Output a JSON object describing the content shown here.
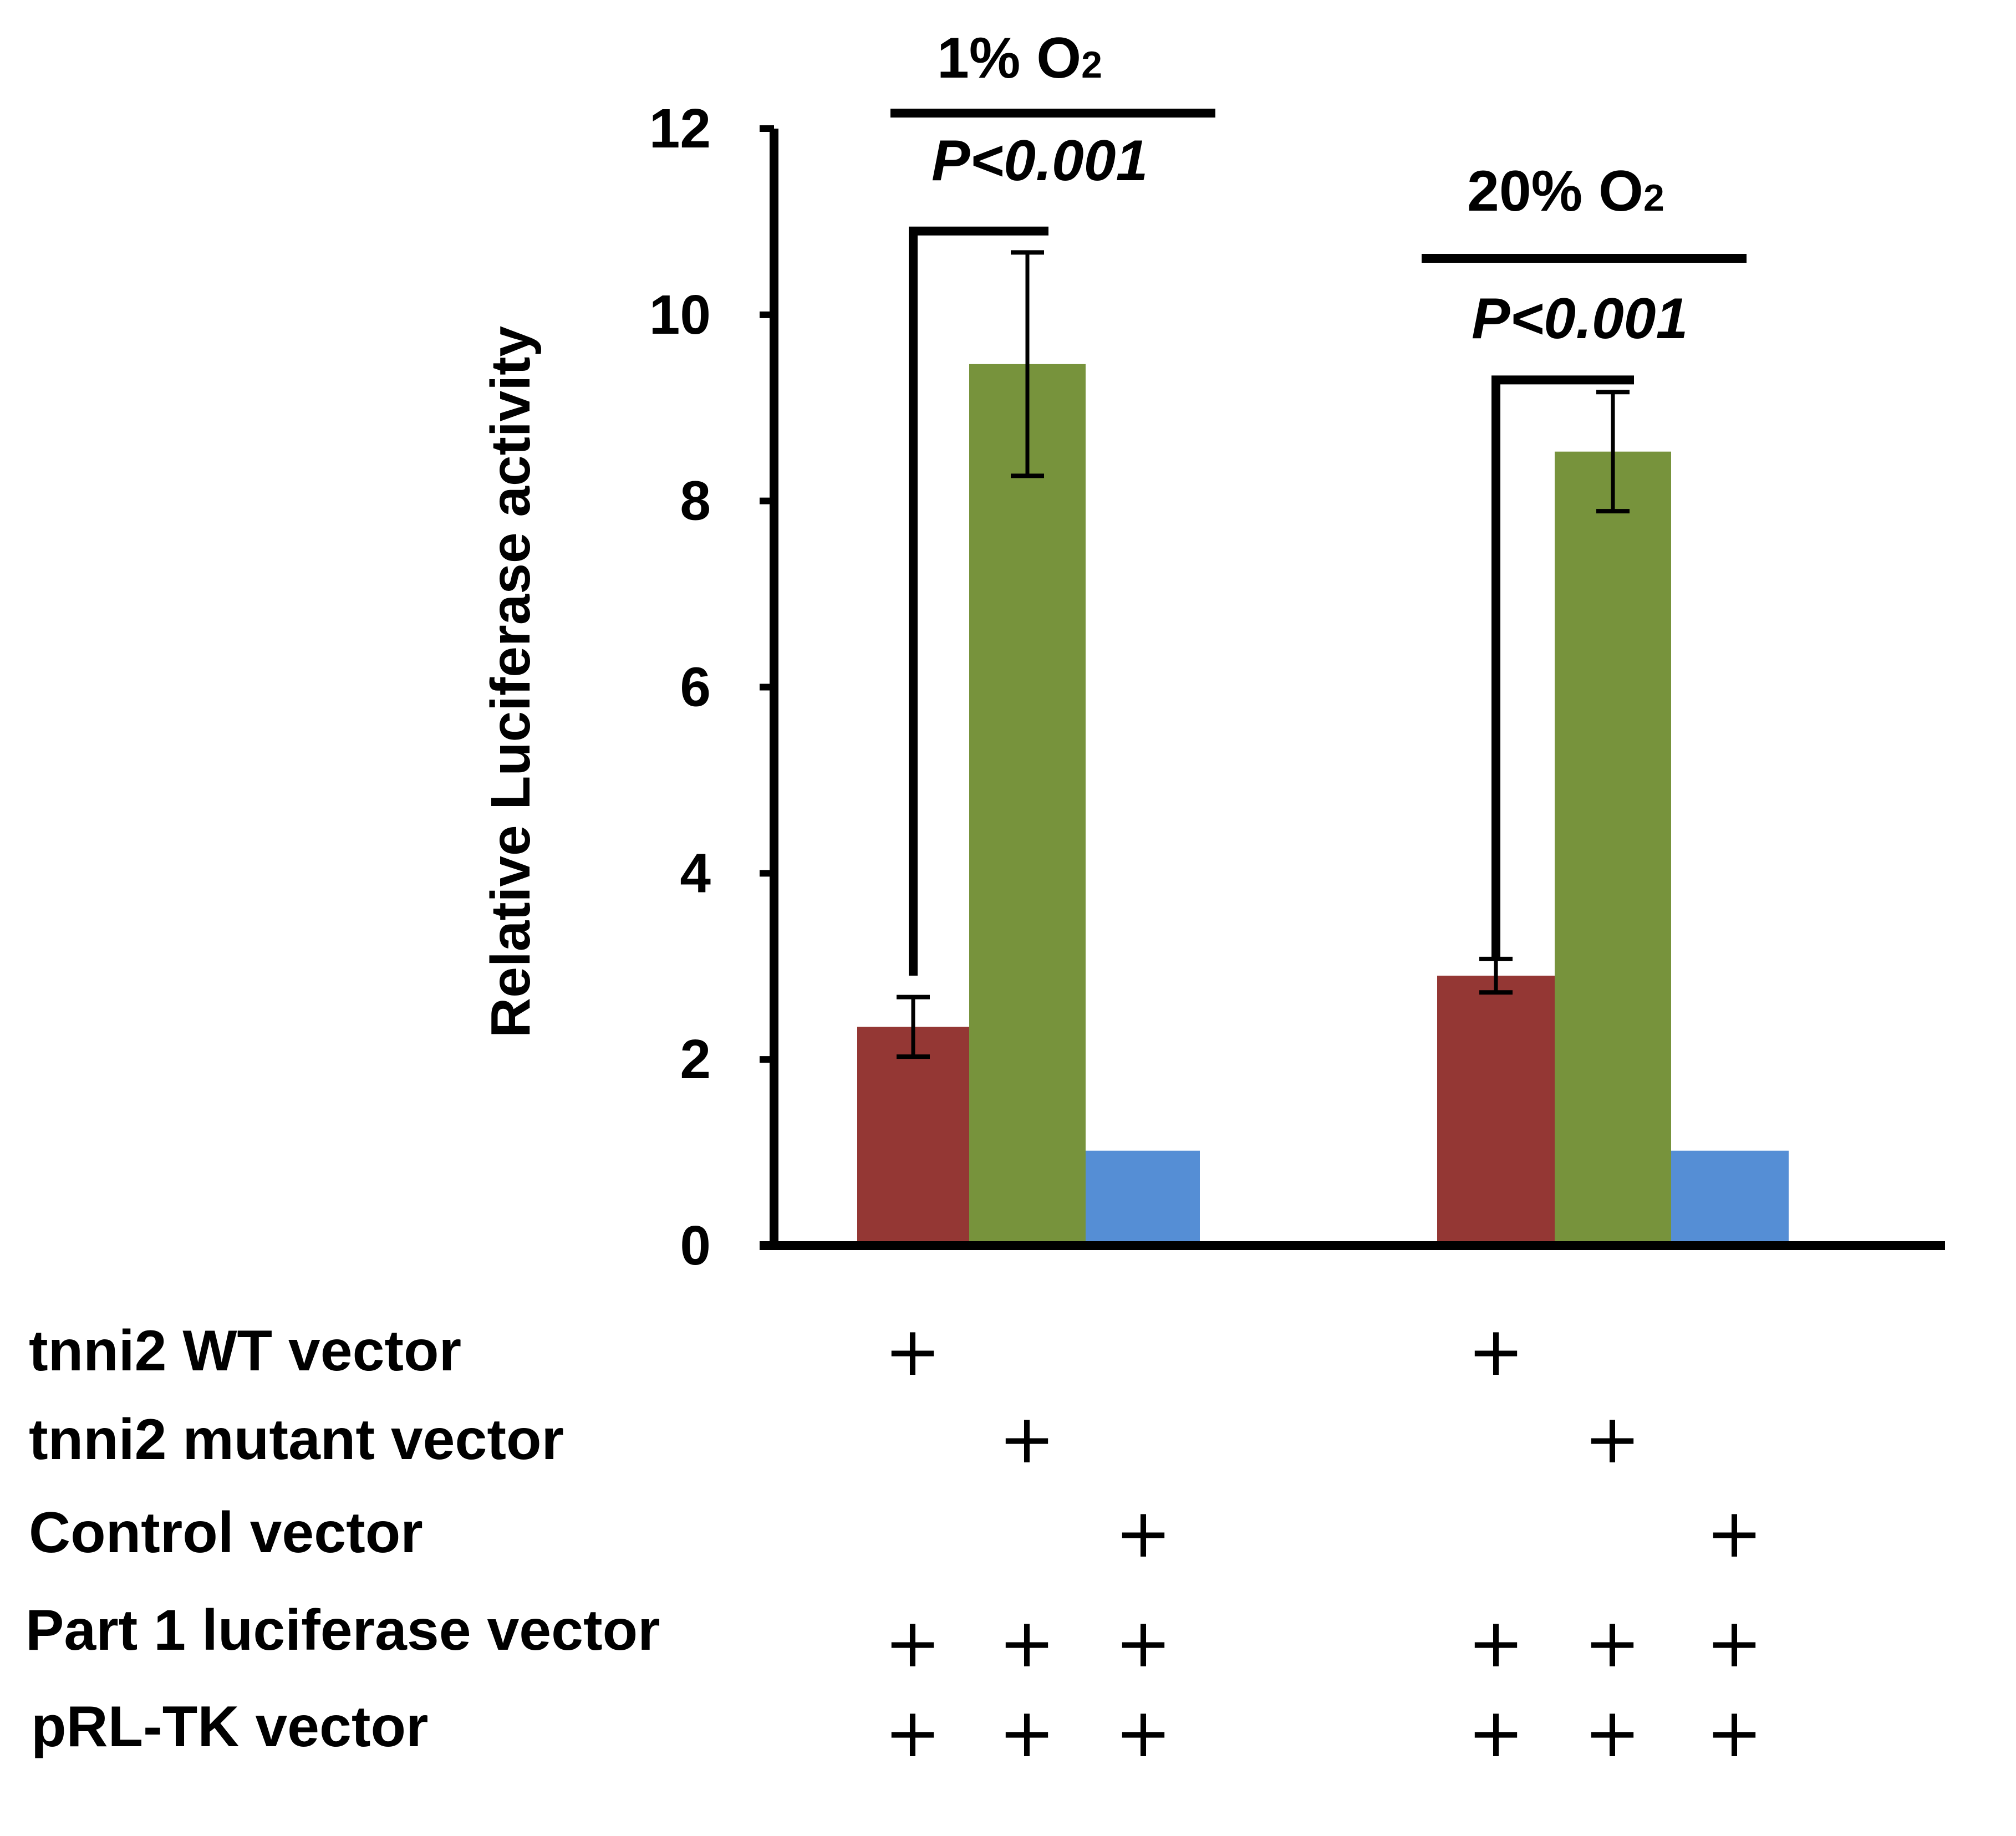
{
  "chart_data": {
    "type": "bar",
    "ylabel": "Relative Luciferase activity",
    "ylim": [
      0,
      12
    ],
    "yticks": [
      0,
      2,
      4,
      6,
      8,
      10,
      12
    ],
    "grid": false,
    "legend": "none",
    "groups": [
      {
        "label_main": "1% O",
        "label_sub": "2",
        "pvalue": "P<0.001",
        "bars": [
          {
            "value": 2.35,
            "error": 0.32,
            "color": "#943734"
          },
          {
            "value": 9.47,
            "error": 1.2,
            "color": "#77933C"
          },
          {
            "value": 1.02,
            "error": 0,
            "color": "#558ED5"
          }
        ]
      },
      {
        "label_main": "20% O",
        "label_sub": "2",
        "pvalue": "P<0.001",
        "bars": [
          {
            "value": 2.9,
            "error": 0.18,
            "color": "#943734"
          },
          {
            "value": 8.53,
            "error": 0.64,
            "color": "#77933C"
          },
          {
            "value": 1.02,
            "error": 0,
            "color": "#558ED5"
          }
        ]
      }
    ],
    "condition_table": {
      "plus_symbol": "+",
      "rows": [
        {
          "label": "tnni2 WT vector",
          "marks": [
            1,
            0,
            0,
            1,
            0,
            0
          ]
        },
        {
          "label": "tnni2 mutant vector",
          "marks": [
            0,
            1,
            0,
            0,
            1,
            0
          ]
        },
        {
          "label": "Control vector",
          "marks": [
            0,
            0,
            1,
            0,
            0,
            1
          ]
        },
        {
          "label": "Part 1 luciferase vector",
          "marks": [
            1,
            1,
            1,
            1,
            1,
            1
          ]
        },
        {
          "label": "pRL-TK vector",
          "marks": [
            1,
            1,
            1,
            1,
            1,
            1
          ]
        }
      ]
    }
  }
}
